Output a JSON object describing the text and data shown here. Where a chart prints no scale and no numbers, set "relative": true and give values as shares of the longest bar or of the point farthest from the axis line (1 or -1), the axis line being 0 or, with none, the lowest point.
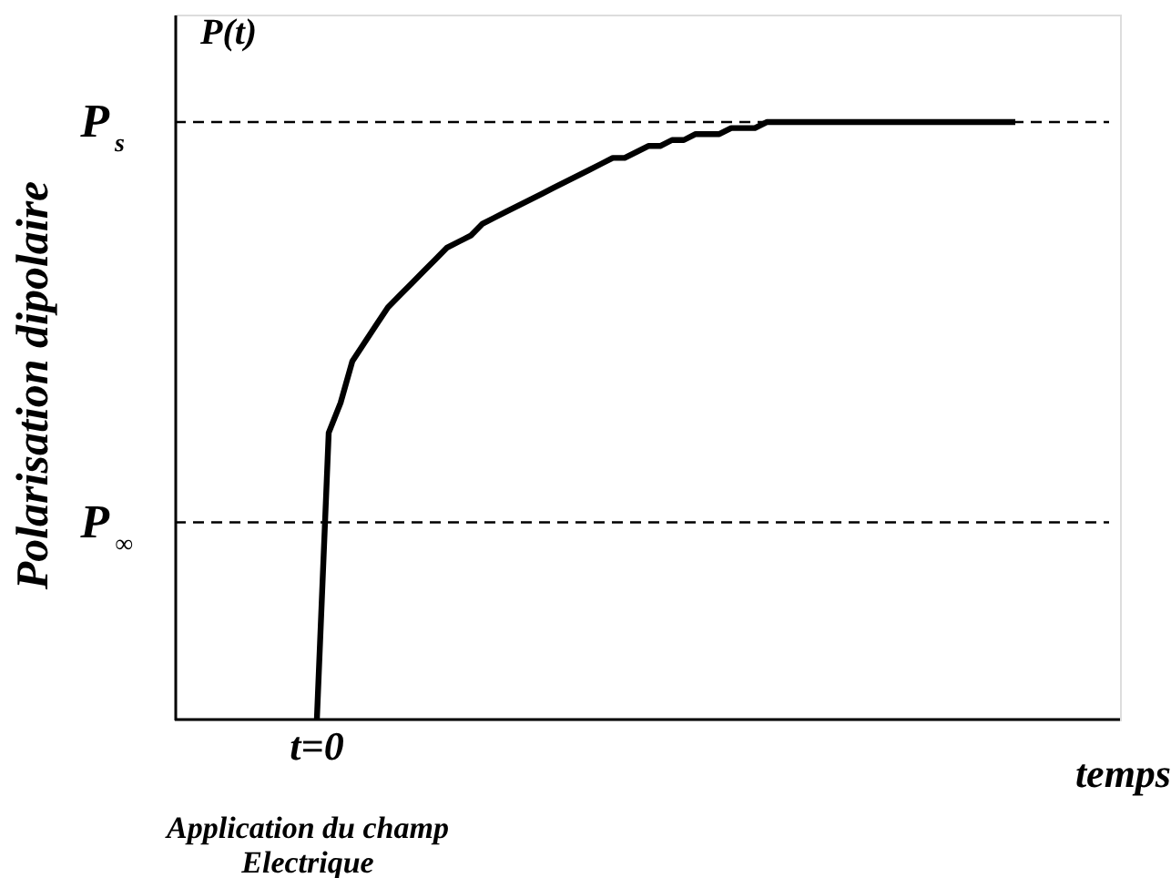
{
  "chart_data": {
    "type": "line",
    "xlabel": "temps",
    "ylabel": "Polarisation dipolaire",
    "categories": [
      null,
      null,
      null,
      null,
      null,
      null,
      null,
      null,
      null,
      null,
      null,
      null,
      null,
      null,
      null,
      null,
      null,
      null,
      null,
      null,
      null,
      null,
      null,
      null,
      null,
      null,
      null,
      null,
      null,
      null,
      null,
      null,
      null,
      null,
      null,
      null,
      null,
      null,
      null,
      null,
      null,
      null,
      null,
      null,
      null,
      null,
      null,
      null,
      null,
      null,
      null,
      null,
      null,
      null,
      null,
      null,
      null,
      null,
      null,
      null,
      null,
      null,
      null,
      null,
      null,
      null,
      null,
      null,
      null,
      null,
      null,
      null
    ],
    "series": [
      {
        "color": "#000000",
        "values": [
          null,
          null,
          null,
          null,
          null,
          null,
          null,
          null,
          null,
          null,
          null,
          null,
          0,
          0.48,
          0.53,
          0.6,
          0.63,
          0.66,
          0.69,
          0.71,
          0.73,
          0.75,
          0.77,
          0.79,
          0.8,
          0.81,
          0.83,
          0.84,
          0.85,
          0.86,
          0.87,
          0.88,
          0.89,
          0.9,
          0.91,
          0.92,
          0.93,
          0.94,
          0.94,
          0.95,
          0.96,
          0.96,
          0.97,
          0.97,
          0.98,
          0.98,
          0.98,
          0.99,
          0.99,
          0.99,
          1,
          1,
          1,
          1,
          1,
          1,
          1,
          1,
          1,
          1,
          1,
          1,
          1,
          1,
          1,
          1,
          1,
          1,
          1,
          1,
          1,
          1
        ]
      }
    ],
    "relative": true,
    "ref_lines": [
      {
        "axis": "y",
        "value": 1,
        "label": "P$_{s}$",
        "line_style": "dashed",
        "color": "#000000"
      },
      {
        "axis": "y",
        "value": 0.33,
        "label": "P$_{∞}$",
        "line_style": "dashed",
        "color": "#000000"
      }
    ],
    "annotations": [
      "P(t)",
      "t=0",
      "Application du champ\nElectrique"
    ],
    "grid": false,
    "marker": "none",
    "line_style": "solid"
  }
}
